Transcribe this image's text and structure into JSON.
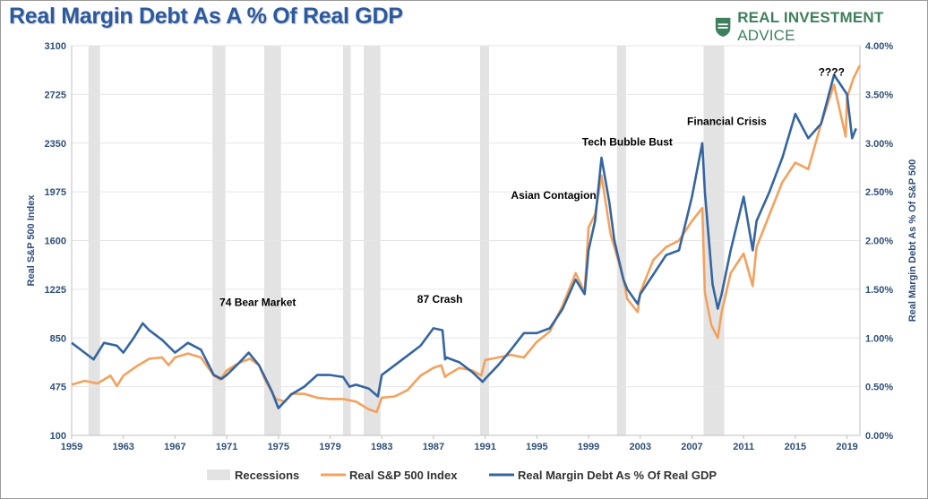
{
  "header": {
    "title": "Real Margin Debt As A % Of Real GDP",
    "brand_name": "REAL INVESTMENT ADVICE",
    "brand_bold": "REAL INVESTMENT",
    "brand_light": " ADVICE",
    "brand_color": "#3e7f5e"
  },
  "colors": {
    "sp500": "#f4a15d",
    "margin_debt": "#3565a0",
    "recession": "#e3e3e3",
    "axis_text": "#2f4f7a",
    "title": "#2b5aa0"
  },
  "chart_data": {
    "type": "line",
    "title": "Real Margin Debt As A % Of Real GDP",
    "xlim": [
      1959,
      2020
    ],
    "ylim_left": [
      100,
      3100
    ],
    "ylim_right": [
      0,
      4
    ],
    "xlabel": "",
    "ylabel_left": "Real S&P 500 Index",
    "ylabel_right": "Real Margin Debt As % Of S&P 500",
    "x_ticks": [
      "1959",
      "1963",
      "1967",
      "1971",
      "1975",
      "1979",
      "1983",
      "1987",
      "1991",
      "1995",
      "1999",
      "2003",
      "2007",
      "2011",
      "2015",
      "2019"
    ],
    "x_tick_values": [
      1959,
      1963,
      1967,
      1971,
      1975,
      1979,
      1983,
      1987,
      1991,
      1995,
      1999,
      2003,
      2007,
      2011,
      2015,
      2019
    ],
    "y_left_ticks": [
      "3100",
      "2725",
      "2350",
      "1975",
      "1600",
      "1225",
      "850",
      "475",
      "100"
    ],
    "y_left_tick_values": [
      3100,
      2725,
      2350,
      1975,
      1600,
      1225,
      850,
      475,
      100
    ],
    "y_right_ticks": [
      "4.00%",
      "3.50%",
      "3.00%",
      "2.50%",
      "2.00%",
      "1.50%",
      "1.00%",
      "0.50%",
      "0.00%"
    ],
    "y_right_tick_values": [
      4.0,
      3.5,
      3.0,
      2.5,
      2.0,
      1.5,
      1.0,
      0.5,
      0.0
    ],
    "grid": "horizontal",
    "legend_position": "bottom",
    "legend": [
      "Recessions",
      "Real S&P 500 Index",
      "Real Margin Debt As % Of Real GDP"
    ],
    "recessions": [
      [
        1960.3,
        1961.2
      ],
      [
        1969.9,
        1970.9
      ],
      [
        1973.9,
        1975.2
      ],
      [
        1980.0,
        1980.6
      ],
      [
        1981.6,
        1982.9
      ],
      [
        1990.6,
        1991.3
      ],
      [
        2001.2,
        2001.9
      ],
      [
        2007.9,
        2009.5
      ]
    ],
    "series": [
      {
        "name": "Real S&P 500 Index",
        "axis": "left",
        "x": [
          1959,
          1960,
          1961,
          1962,
          1962.5,
          1963,
          1964,
          1965,
          1966,
          1966.5,
          1967,
          1968,
          1969,
          1970,
          1970.5,
          1971,
          1972,
          1972.8,
          1973.5,
          1974,
          1974.8,
          1975.5,
          1976,
          1977,
          1978,
          1979,
          1980,
          1981,
          1982,
          1982.6,
          1983,
          1984,
          1985,
          1986,
          1987,
          1987.6,
          1987.9,
          1988,
          1989,
          1990,
          1990.7,
          1991,
          1992,
          1993,
          1994,
          1995,
          1996,
          1997,
          1998,
          1998.7,
          1999,
          1999.5,
          2000,
          2000.7,
          2001,
          2001.7,
          2002,
          2002.8,
          2003,
          2004,
          2005,
          2006,
          2007,
          2007.8,
          2008,
          2008.5,
          2009,
          2009.3,
          2010,
          2011,
          2011.7,
          2012,
          2013,
          2014,
          2015,
          2016,
          2017,
          2018,
          2018.9,
          2019,
          2019.5,
          2020
        ],
        "values": [
          490,
          520,
          500,
          560,
          480,
          560,
          630,
          690,
          700,
          640,
          700,
          730,
          700,
          560,
          530,
          600,
          660,
          690,
          640,
          520,
          380,
          360,
          420,
          420,
          390,
          380,
          380,
          360,
          300,
          280,
          390,
          400,
          450,
          560,
          620,
          640,
          550,
          560,
          620,
          600,
          560,
          680,
          700,
          720,
          700,
          820,
          900,
          1100,
          1350,
          1200,
          1700,
          1800,
          2100,
          1650,
          1550,
          1300,
          1150,
          1050,
          1200,
          1450,
          1550,
          1600,
          1750,
          1850,
          1200,
          950,
          850,
          1050,
          1350,
          1500,
          1250,
          1550,
          1800,
          2050,
          2200,
          2150,
          2500,
          2800,
          2400,
          2700,
          2850,
          2950
        ]
      },
      {
        "name": "Real Margin Debt As A % Of Real GDP",
        "axis": "right",
        "x": [
          1959,
          1960,
          1960.7,
          1961.5,
          1962.5,
          1963,
          1963.8,
          1964.5,
          1965,
          1966,
          1967,
          1968,
          1969,
          1970,
          1970.6,
          1971,
          1972,
          1972.7,
          1973.5,
          1974.5,
          1975,
          1976,
          1977,
          1978,
          1979,
          1980,
          1980.5,
          1981,
          1982,
          1982.7,
          1983,
          1984,
          1985,
          1986,
          1987,
          1987.7,
          1987.9,
          1988,
          1989,
          1990,
          1990.8,
          1991,
          1992,
          1993,
          1994,
          1995,
          1996,
          1997,
          1998,
          1998.7,
          1999,
          1999.5,
          2000,
          2000.6,
          2001,
          2001.7,
          2002,
          2002.8,
          2003,
          2004,
          2005,
          2006,
          2007,
          2007.8,
          2008,
          2008.6,
          2009,
          2009.3,
          2010,
          2011,
          2011.7,
          2012,
          2013,
          2014,
          2015,
          2016,
          2017,
          2018,
          2018.5,
          2019,
          2019.4,
          2019.7
        ],
        "values": [
          0.95,
          0.85,
          0.78,
          0.95,
          0.92,
          0.85,
          1.0,
          1.15,
          1.08,
          0.98,
          0.85,
          0.95,
          0.88,
          0.62,
          0.58,
          0.62,
          0.75,
          0.85,
          0.72,
          0.45,
          0.28,
          0.42,
          0.5,
          0.62,
          0.62,
          0.6,
          0.5,
          0.52,
          0.48,
          0.4,
          0.62,
          0.72,
          0.82,
          0.92,
          1.1,
          1.08,
          0.78,
          0.8,
          0.75,
          0.65,
          0.55,
          0.58,
          0.72,
          0.88,
          1.05,
          1.05,
          1.1,
          1.3,
          1.6,
          1.45,
          1.9,
          2.2,
          2.85,
          2.4,
          2.0,
          1.6,
          1.5,
          1.35,
          1.45,
          1.65,
          1.85,
          1.9,
          2.45,
          3.0,
          2.5,
          1.55,
          1.3,
          1.45,
          1.9,
          2.45,
          1.9,
          2.2,
          2.5,
          2.85,
          3.3,
          3.05,
          3.2,
          3.7,
          3.6,
          3.5,
          3.05,
          3.15
        ]
      }
    ],
    "annotations": [
      {
        "text": "74 Bear Market",
        "x": 1973.4,
        "y": 1095
      },
      {
        "text": "87 Crash",
        "x": 1987.5,
        "y": 1120
      },
      {
        "text": "Asian Contagion",
        "x": 1996.3,
        "y": 1920
      },
      {
        "text": "Tech Bubble Bust",
        "x": 2002.0,
        "y": 2330
      },
      {
        "text": "Financial Crisis",
        "x": 2009.7,
        "y": 2490
      },
      {
        "text": "????",
        "x": 2017.8,
        "y": 2870
      }
    ]
  }
}
